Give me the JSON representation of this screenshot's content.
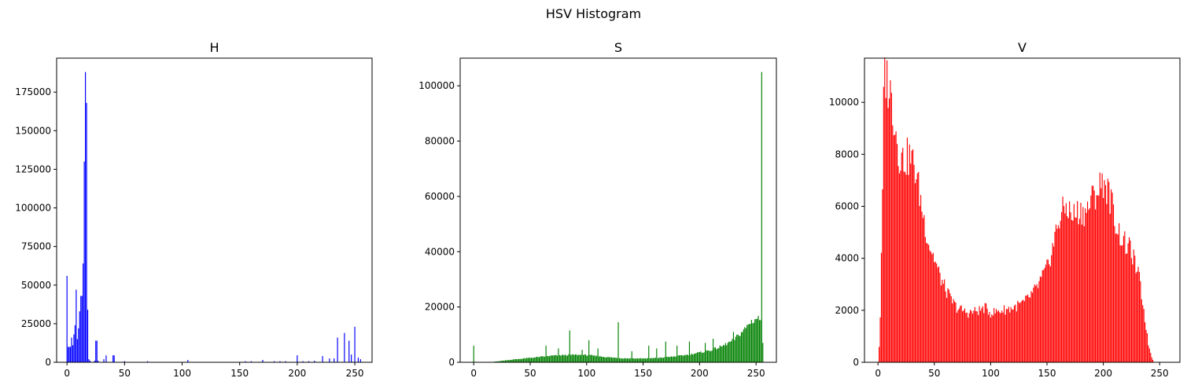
{
  "suptitle": "HSV Histogram",
  "chart_data": [
    {
      "type": "bar",
      "title": "H",
      "color": "#0000ff",
      "xlim": [
        -9,
        265
      ],
      "ylim": [
        0,
        197000
      ],
      "xticks": [
        0,
        50,
        100,
        150,
        200,
        250
      ],
      "yticks": [
        0,
        25000,
        50000,
        75000,
        100000,
        125000,
        150000,
        175000
      ],
      "bins": [
        [
          0,
          56000
        ],
        [
          1,
          10000
        ],
        [
          2,
          10000
        ],
        [
          3,
          10000
        ],
        [
          4,
          16000
        ],
        [
          5,
          11000
        ],
        [
          6,
          18000
        ],
        [
          7,
          24000
        ],
        [
          8,
          47000
        ],
        [
          9,
          15000
        ],
        [
          10,
          22000
        ],
        [
          11,
          33000
        ],
        [
          12,
          43000
        ],
        [
          13,
          43000
        ],
        [
          14,
          64000
        ],
        [
          15,
          130000
        ],
        [
          16,
          188000
        ],
        [
          17,
          168000
        ],
        [
          18,
          34000
        ],
        [
          19,
          2000
        ],
        [
          20,
          1000
        ],
        [
          24,
          1000
        ],
        [
          25,
          14000
        ],
        [
          26,
          14000
        ],
        [
          27,
          1000
        ],
        [
          32,
          2000
        ],
        [
          34,
          4500
        ],
        [
          40,
          4500
        ],
        [
          41,
          4500
        ],
        [
          50,
          700
        ],
        [
          70,
          700
        ],
        [
          105,
          1500
        ],
        [
          155,
          700
        ],
        [
          160,
          700
        ],
        [
          170,
          1500
        ],
        [
          180,
          700
        ],
        [
          185,
          700
        ],
        [
          190,
          700
        ],
        [
          200,
          4500
        ],
        [
          205,
          700
        ],
        [
          210,
          700
        ],
        [
          215,
          1000
        ],
        [
          222,
          4000
        ],
        [
          228,
          2500
        ],
        [
          232,
          2500
        ],
        [
          235,
          16000
        ],
        [
          241,
          19000
        ],
        [
          245,
          14000
        ],
        [
          247,
          5000
        ],
        [
          250,
          23000
        ],
        [
          253,
          3000
        ],
        [
          255,
          2000
        ]
      ]
    },
    {
      "type": "bar",
      "title": "S",
      "color": "#008000",
      "xlim": [
        -12,
        268
      ],
      "ylim": [
        0,
        110000
      ],
      "xticks": [
        0,
        50,
        100,
        150,
        200,
        250
      ],
      "yticks": [
        0,
        20000,
        40000,
        60000,
        80000,
        100000
      ],
      "spikes": [
        [
          0,
          6000
        ],
        [
          64,
          6000
        ],
        [
          75,
          5000
        ],
        [
          85,
          11500
        ],
        [
          96,
          4500
        ],
        [
          102,
          8000
        ],
        [
          110,
          5000
        ],
        [
          128,
          14500
        ],
        [
          140,
          4000
        ],
        [
          155,
          6000
        ],
        [
          162,
          5000
        ],
        [
          170,
          7500
        ],
        [
          180,
          6000
        ],
        [
          191,
          7500
        ],
        [
          205,
          7000
        ],
        [
          212,
          8500
        ],
        [
          230,
          11000
        ],
        [
          255,
          105000
        ],
        [
          256,
          7000
        ]
      ],
      "profile": [
        [
          14,
          0
        ],
        [
          20,
          300
        ],
        [
          30,
          800
        ],
        [
          40,
          1200
        ],
        [
          50,
          1600
        ],
        [
          60,
          2000
        ],
        [
          70,
          2400
        ],
        [
          80,
          2600
        ],
        [
          90,
          2700
        ],
        [
          100,
          2600
        ],
        [
          110,
          2200
        ],
        [
          120,
          1800
        ],
        [
          130,
          1500
        ],
        [
          140,
          1400
        ],
        [
          150,
          1400
        ],
        [
          160,
          1500
        ],
        [
          170,
          1800
        ],
        [
          180,
          2200
        ],
        [
          190,
          2800
        ],
        [
          200,
          3500
        ],
        [
          210,
          4400
        ],
        [
          220,
          5800
        ],
        [
          230,
          8000
        ],
        [
          240,
          12000
        ],
        [
          245,
          14500
        ],
        [
          250,
          15800
        ],
        [
          253,
          16000
        ],
        [
          254,
          14000
        ]
      ]
    },
    {
      "type": "bar",
      "title": "V",
      "color": "#ff0000",
      "xlim": [
        -12,
        268
      ],
      "ylim": [
        0,
        11700
      ],
      "xticks": [
        0,
        50,
        100,
        150,
        200,
        250
      ],
      "yticks": [
        0,
        2000,
        4000,
        6000,
        8000,
        10000
      ],
      "profile": [
        [
          0,
          0
        ],
        [
          1,
          600
        ],
        [
          2,
          1800
        ],
        [
          3,
          3900
        ],
        [
          4,
          6500
        ],
        [
          5,
          9800
        ],
        [
          6,
          11300
        ],
        [
          7,
          11000
        ],
        [
          10,
          10600
        ],
        [
          12,
          10100
        ],
        [
          15,
          9300
        ],
        [
          18,
          8100
        ],
        [
          22,
          7800
        ],
        [
          28,
          7900
        ],
        [
          32,
          7600
        ],
        [
          35,
          7000
        ],
        [
          40,
          5700
        ],
        [
          45,
          4600
        ],
        [
          50,
          4000
        ],
        [
          55,
          3300
        ],
        [
          60,
          2800
        ],
        [
          65,
          2400
        ],
        [
          70,
          2100
        ],
        [
          75,
          2000
        ],
        [
          80,
          1900
        ],
        [
          90,
          2000
        ],
        [
          95,
          2100
        ],
        [
          100,
          1900
        ],
        [
          110,
          2000
        ],
        [
          120,
          2100
        ],
        [
          130,
          2300
        ],
        [
          140,
          2800
        ],
        [
          150,
          3600
        ],
        [
          155,
          4400
        ],
        [
          160,
          5400
        ],
        [
          165,
          5900
        ],
        [
          168,
          6000
        ],
        [
          172,
          5600
        ],
        [
          178,
          5800
        ],
        [
          185,
          5800
        ],
        [
          190,
          6300
        ],
        [
          195,
          6600
        ],
        [
          200,
          7000
        ],
        [
          203,
          6700
        ],
        [
          207,
          6200
        ],
        [
          212,
          5200
        ],
        [
          215,
          4900
        ],
        [
          220,
          4500
        ],
        [
          225,
          4300
        ],
        [
          228,
          3800
        ],
        [
          232,
          3200
        ],
        [
          236,
          2000
        ],
        [
          240,
          700
        ],
        [
          243,
          200
        ],
        [
          245,
          0
        ]
      ]
    }
  ]
}
